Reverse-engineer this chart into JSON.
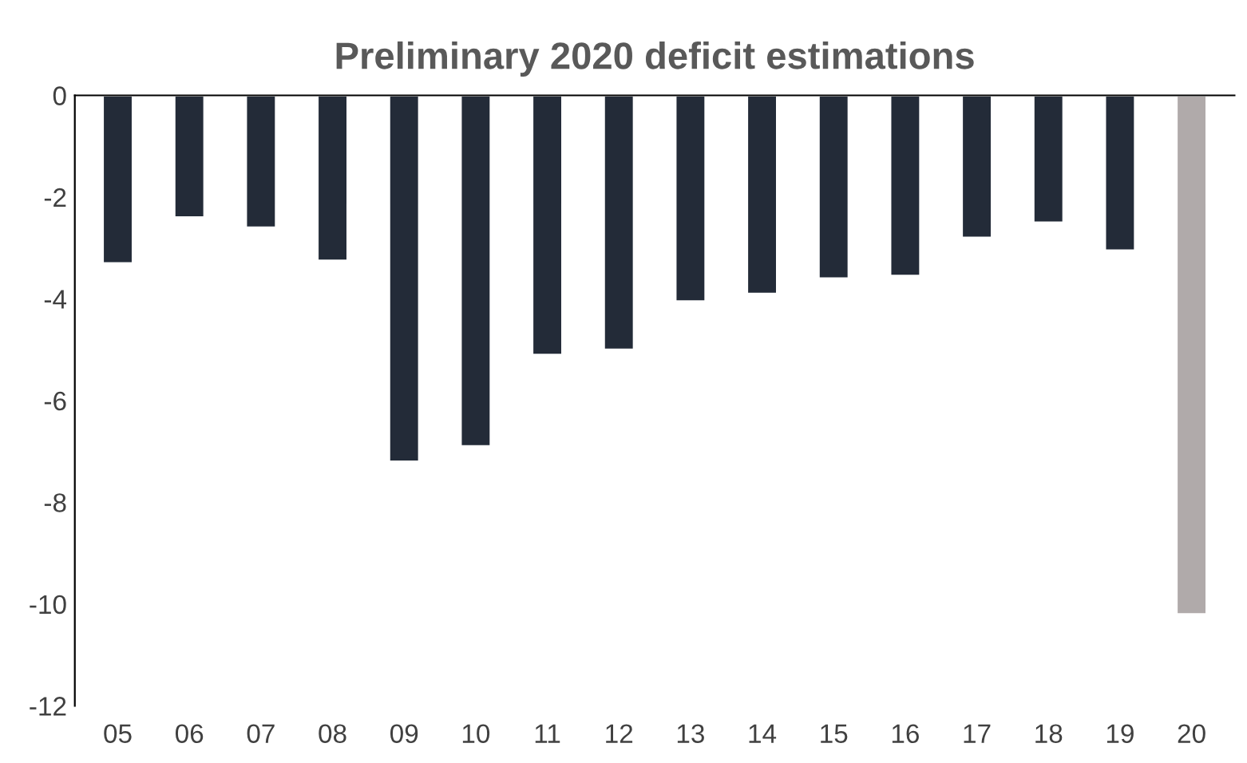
{
  "chart_data": {
    "type": "bar",
    "title": "Preliminary 2020 deficit estimations",
    "categories": [
      "05",
      "06",
      "07",
      "08",
      "09",
      "10",
      "11",
      "12",
      "13",
      "14",
      "15",
      "16",
      "17",
      "18",
      "19",
      "20"
    ],
    "values": [
      -3.3,
      -2.4,
      -2.6,
      -3.25,
      -7.2,
      -6.9,
      -5.1,
      -5.0,
      -4.05,
      -3.9,
      -3.6,
      -3.55,
      -2.8,
      -2.5,
      -3.05,
      -10.2
    ],
    "colors": [
      "#232b38",
      "#232b38",
      "#232b38",
      "#232b38",
      "#232b38",
      "#232b38",
      "#232b38",
      "#232b38",
      "#232b38",
      "#232b38",
      "#232b38",
      "#232b38",
      "#232b38",
      "#232b38",
      "#232b38",
      "#b0aaaa"
    ],
    "ylim": [
      -12,
      0
    ],
    "yticks": [
      -12,
      -10,
      -8,
      -6,
      -4,
      -2,
      0
    ],
    "grid": false
  }
}
